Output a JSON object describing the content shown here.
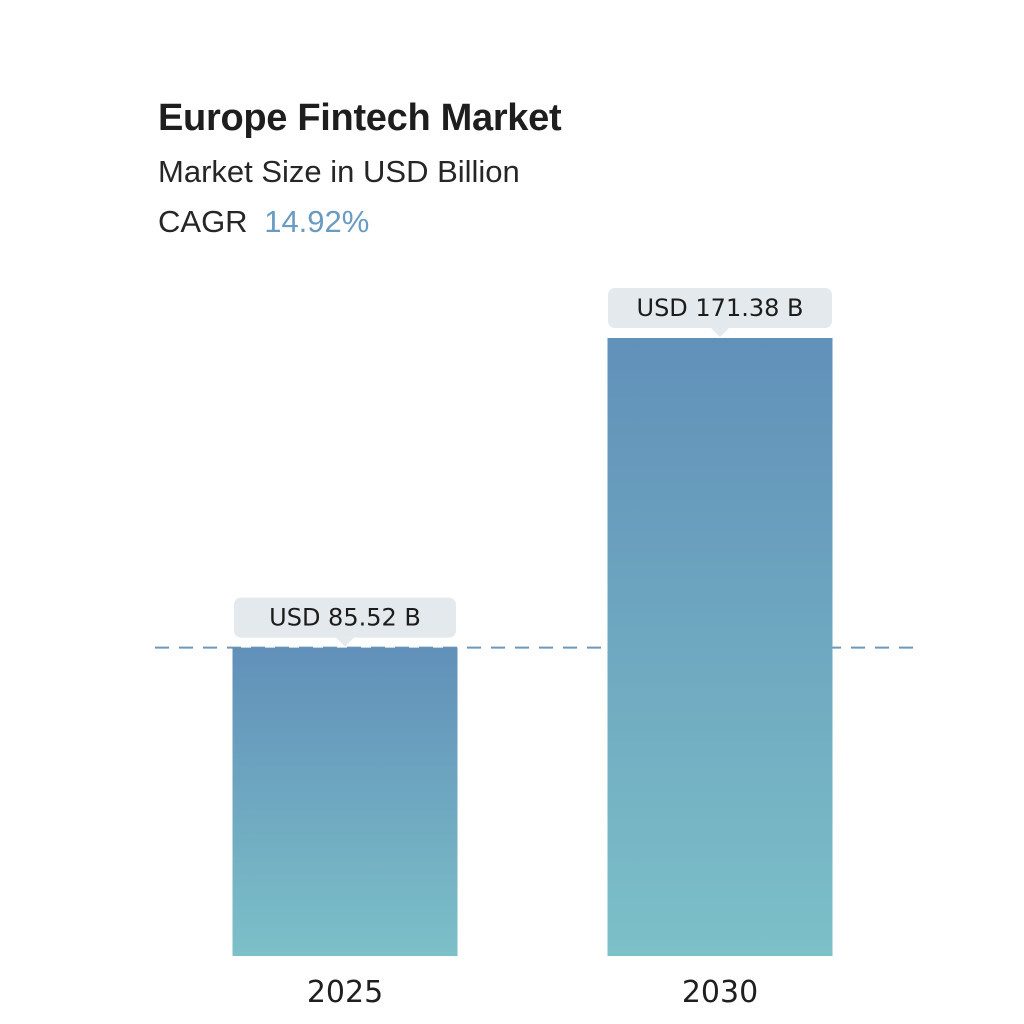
{
  "header": {
    "title": "Europe Fintech Market",
    "subtitle": "Market Size in USD Billion",
    "cagr_label": "CAGR",
    "cagr_value": "14.92%"
  },
  "colors": {
    "bar_top": "#6190b9",
    "bar_bottom": "#7cc0c8",
    "bubble_bg": "#e3e9ec",
    "dashed_line": "#6e97bb",
    "cagr_accent": "#6a9bc2"
  },
  "chart_data": {
    "type": "bar",
    "title": "Europe Fintech Market",
    "subtitle": "Market Size in USD Billion",
    "categories": [
      "2025",
      "2030"
    ],
    "values": [
      85.52,
      171.38
    ],
    "value_labels": [
      "USD 85.52 B",
      "USD 171.38 B"
    ],
    "reference_line": 85.52,
    "ylim": [
      0,
      171.38
    ],
    "grid": false,
    "legend": "none",
    "xlabel": "",
    "ylabel": ""
  }
}
